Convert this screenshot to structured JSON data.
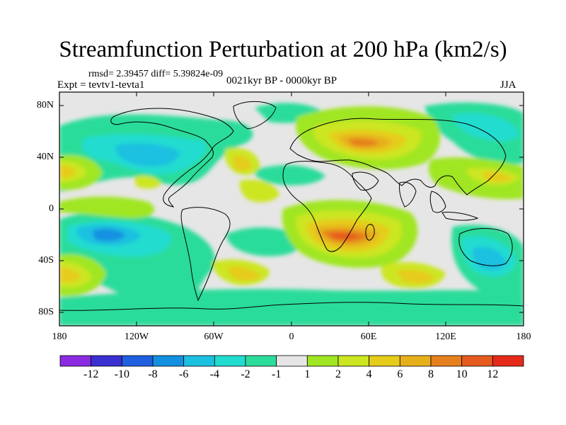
{
  "title": "Streamfunction Perturbation at 200 hPa (km2/s)",
  "stats_line": "rmsd= 2.39457 diff= 5.39824e-09",
  "experiment": "Expt = tevtv1-tevta1",
  "period": "0021kyr BP - 0000kyr BP",
  "season": "JJA",
  "lat_ticks": [
    "80N",
    "40N",
    "0",
    "40S",
    "80S"
  ],
  "lon_ticks": [
    "180",
    "120W",
    "60W",
    "0",
    "60E",
    "120E",
    "180"
  ],
  "colorbar": {
    "colors": [
      "#8a2be2",
      "#3a2fd0",
      "#1f5fe0",
      "#1390e0",
      "#1cc0e0",
      "#22dcd0",
      "#2cdc9a",
      "#e6e6e6",
      "#a0e622",
      "#cce622",
      "#e6cc1a",
      "#e6b01a",
      "#e6801e",
      "#e65a1e",
      "#e62a1a"
    ],
    "labels": [
      "-12",
      "-10",
      "-8",
      "-6",
      "-4",
      "-2",
      "-1",
      "1",
      "2",
      "4",
      "6",
      "8",
      "10",
      "12"
    ]
  }
}
